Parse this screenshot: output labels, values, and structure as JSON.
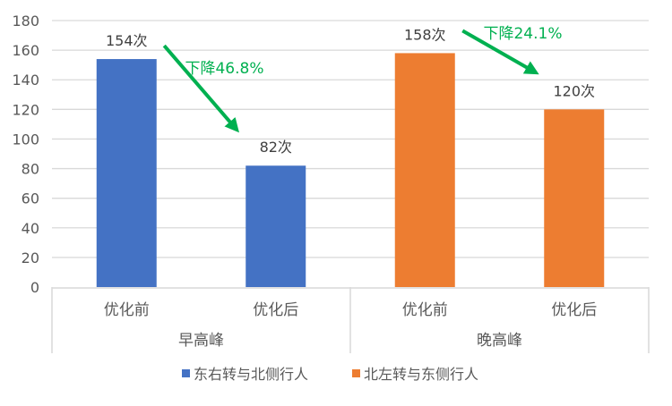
{
  "chart_data": {
    "type": "bar",
    "title": "",
    "xlabel": "",
    "ylabel": "",
    "ylim": [
      0,
      180
    ],
    "yticks": [
      0,
      20,
      40,
      60,
      80,
      100,
      120,
      140,
      160,
      180
    ],
    "grid": true,
    "legend_position": "bottom",
    "groups": [
      {
        "label": "早高峰",
        "categories": [
          "优化前",
          "优化后"
        ]
      },
      {
        "label": "晚高峰",
        "categories": [
          "优化前",
          "优化后"
        ]
      }
    ],
    "series": [
      {
        "name": "东右转与北侧行人",
        "color": "#4472C4",
        "values": [
          154,
          82,
          null,
          null
        ],
        "data_labels": [
          "154次",
          "82次",
          "",
          ""
        ]
      },
      {
        "name": "北左转与东侧行人",
        "color": "#ED7D31",
        "values": [
          null,
          null,
          158,
          120
        ],
        "data_labels": [
          "",
          "",
          "158次",
          "120次"
        ]
      }
    ],
    "annotations": [
      {
        "text": "下降46.8%",
        "color": "#00B050",
        "from_category": 0,
        "to_category": 1
      },
      {
        "text": "下降24.1%",
        "color": "#00B050",
        "from_category": 2,
        "to_category": 3
      }
    ]
  }
}
